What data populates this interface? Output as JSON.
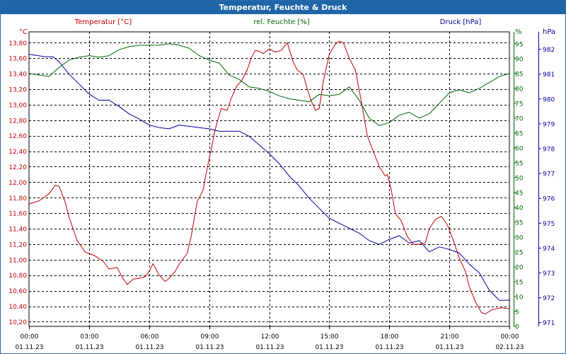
{
  "window": {
    "title": "Temperatur, Feuchte & Druck"
  },
  "chart_data": {
    "type": "line",
    "title": "Temperatur, Feuchte & Druck",
    "x_ticks": [
      {
        "time": "00:00",
        "date": "01.11.23"
      },
      {
        "time": "03:00",
        "date": "01.11.23"
      },
      {
        "time": "06:00",
        "date": "01.11.23"
      },
      {
        "time": "09:00",
        "date": "01.11.23"
      },
      {
        "time": "12:00",
        "date": "01.11.23"
      },
      {
        "time": "15:00",
        "date": "01.11.23"
      },
      {
        "time": "18:00",
        "date": "01.11.23"
      },
      {
        "time": "21:00",
        "date": "01.11.23"
      },
      {
        "time": "00:00",
        "date": "02.11.23"
      }
    ],
    "xlim": [
      0,
      24
    ],
    "axes": {
      "temperature": {
        "title": "Temperatur [°C]",
        "unit": "°C",
        "ylim": [
          10.14,
          13.94
        ],
        "color": "#c00000",
        "ticks": [
          "10,20",
          "10,40",
          "10,60",
          "10,80",
          "11,00",
          "11,20",
          "11,40",
          "11,60",
          "11,80",
          "12,00",
          "12,20",
          "12,40",
          "12,60",
          "12,80",
          "13,00",
          "13,20",
          "13,40",
          "13,60",
          "13,80"
        ]
      },
      "humidity": {
        "title": "rel. Feuchte [%]",
        "unit": "%",
        "ylim": [
          0,
          99
        ],
        "color": "#006400",
        "ticks": [
          "0",
          "5",
          "10",
          "15",
          "20",
          "25",
          "30",
          "35",
          "40",
          "45",
          "50",
          "55",
          "60",
          "65",
          "70",
          "75",
          "80",
          "85",
          "90",
          "95"
        ]
      },
      "pressure": {
        "title": "Druck [hPa]",
        "unit": "hPa",
        "ylim": [
          970.85,
          982.7
        ],
        "color": "#00009c",
        "ticks": [
          "971",
          "972",
          "973",
          "974",
          "975",
          "976",
          "977",
          "978",
          "979",
          "980",
          "981",
          "982"
        ]
      }
    },
    "series": [
      {
        "name": "Temperatur",
        "axis": "temperature",
        "color": "#c00000",
        "x": [
          0,
          0.5,
          1,
          1.3,
          1.5,
          1.8,
          2,
          2.4,
          2.8,
          3.3,
          3.7,
          4,
          4.4,
          4.6,
          4.9,
          5.2,
          5.5,
          5.8,
          6,
          6.2,
          6.5,
          6.8,
          7,
          7.3,
          7.6,
          7.9,
          8.1,
          8.4,
          8.7,
          8.9,
          9.1,
          9.3,
          9.6,
          9.9,
          10.1,
          10.4,
          10.6,
          10.9,
          11.1,
          11.3,
          11.5,
          11.7,
          12,
          12.3,
          12.6,
          12.9,
          13.2,
          13.4,
          13.7,
          13.9,
          14.1,
          14.3,
          14.5,
          14.7,
          15,
          15.3,
          15.5,
          15.7,
          16,
          16.3,
          16.6,
          16.9,
          17.2,
          17.5,
          17.8,
          17.9,
          18.1,
          18.3,
          18.6,
          18.9,
          19.2,
          19.5,
          19.8,
          20,
          20.3,
          20.6,
          20.9,
          21.2,
          21.5,
          21.8,
          22,
          22.3,
          22.6,
          22.8,
          23.1,
          23.4,
          23.6,
          23.9,
          24
        ],
        "y": [
          11.72,
          11.76,
          11.85,
          11.96,
          11.95,
          11.75,
          11.55,
          11.25,
          11.1,
          11.05,
          10.98,
          10.88,
          10.9,
          10.8,
          10.68,
          10.75,
          10.76,
          10.78,
          10.85,
          10.95,
          10.8,
          10.72,
          10.76,
          10.85,
          10.98,
          11.08,
          11.3,
          11.75,
          11.9,
          12.18,
          12.42,
          12.68,
          12.95,
          12.93,
          13.08,
          13.25,
          13.3,
          13.45,
          13.6,
          13.7,
          13.69,
          13.66,
          13.72,
          13.68,
          13.7,
          13.8,
          13.55,
          13.45,
          13.39,
          13.2,
          13.05,
          12.93,
          12.95,
          13.3,
          13.65,
          13.78,
          13.82,
          13.8,
          13.6,
          13.45,
          13.05,
          12.6,
          12.4,
          12.2,
          12.08,
          12.1,
          11.9,
          11.6,
          11.5,
          11.3,
          11.2,
          11.2,
          11.22,
          11.4,
          11.52,
          11.56,
          11.45,
          11.25,
          11.02,
          10.85,
          10.65,
          10.46,
          10.32,
          10.3,
          10.35,
          10.37,
          10.38,
          10.37,
          10.37
        ]
      },
      {
        "name": "rel. Feuchte",
        "axis": "humidity",
        "color": "#006400",
        "x": [
          0,
          0.5,
          1,
          1.5,
          2,
          2.5,
          3,
          3.5,
          4,
          4.5,
          5,
          5.5,
          6,
          6.5,
          7,
          7.5,
          8,
          8.5,
          9,
          9.5,
          10,
          10.5,
          11,
          11.5,
          12,
          12.5,
          13,
          13.5,
          14,
          14.5,
          15,
          15.5,
          16,
          16.5,
          17,
          17.5,
          18,
          18.5,
          19,
          19.5,
          20,
          20.5,
          21,
          21.5,
          22,
          22.5,
          23,
          23.5,
          24
        ],
        "y": [
          85,
          84.5,
          84,
          87,
          89.5,
          90.5,
          91,
          90.5,
          91,
          93,
          94,
          94.5,
          94.5,
          94.5,
          95,
          94.5,
          93.5,
          91,
          89.5,
          88.5,
          84.5,
          83,
          80.5,
          80,
          79,
          77.5,
          76.5,
          76,
          75.5,
          78,
          77.5,
          78,
          80.5,
          76,
          70,
          67.5,
          68.5,
          71,
          72,
          70,
          71.5,
          75,
          78.5,
          79.5,
          78.5,
          80,
          82,
          84,
          85
        ]
      },
      {
        "name": "Druck",
        "axis": "pressure",
        "color": "#00009c",
        "x": [
          0,
          0.4,
          0.8,
          1.2,
          1.5,
          2,
          2.5,
          3,
          3.5,
          4,
          4.5,
          5,
          5.5,
          6,
          6.5,
          7,
          7.5,
          8,
          8.5,
          9,
          9.5,
          10,
          10.5,
          11,
          11.5,
          12,
          12.5,
          13,
          13.5,
          14,
          14.5,
          15,
          15.5,
          16,
          16.5,
          17,
          17.5,
          18,
          18.5,
          19,
          19.5,
          20,
          20.5,
          21,
          21.5,
          22,
          22.5,
          23,
          23.5,
          24
        ],
        "y": [
          981.8,
          981.75,
          981.7,
          981.7,
          981.5,
          981,
          980.6,
          980.2,
          979.95,
          979.95,
          979.7,
          979.4,
          979.2,
          978.95,
          978.85,
          978.8,
          978.95,
          978.9,
          978.85,
          978.8,
          978.7,
          978.7,
          978.7,
          978.5,
          978.15,
          977.8,
          977.4,
          976.9,
          976.5,
          976,
          975.6,
          975.2,
          975,
          974.8,
          974.6,
          974.3,
          974.15,
          974.35,
          974.5,
          974.2,
          974.3,
          973.85,
          974.05,
          973.95,
          973.8,
          973.35,
          973,
          972.3,
          971.9,
          971.9
        ]
      }
    ]
  }
}
